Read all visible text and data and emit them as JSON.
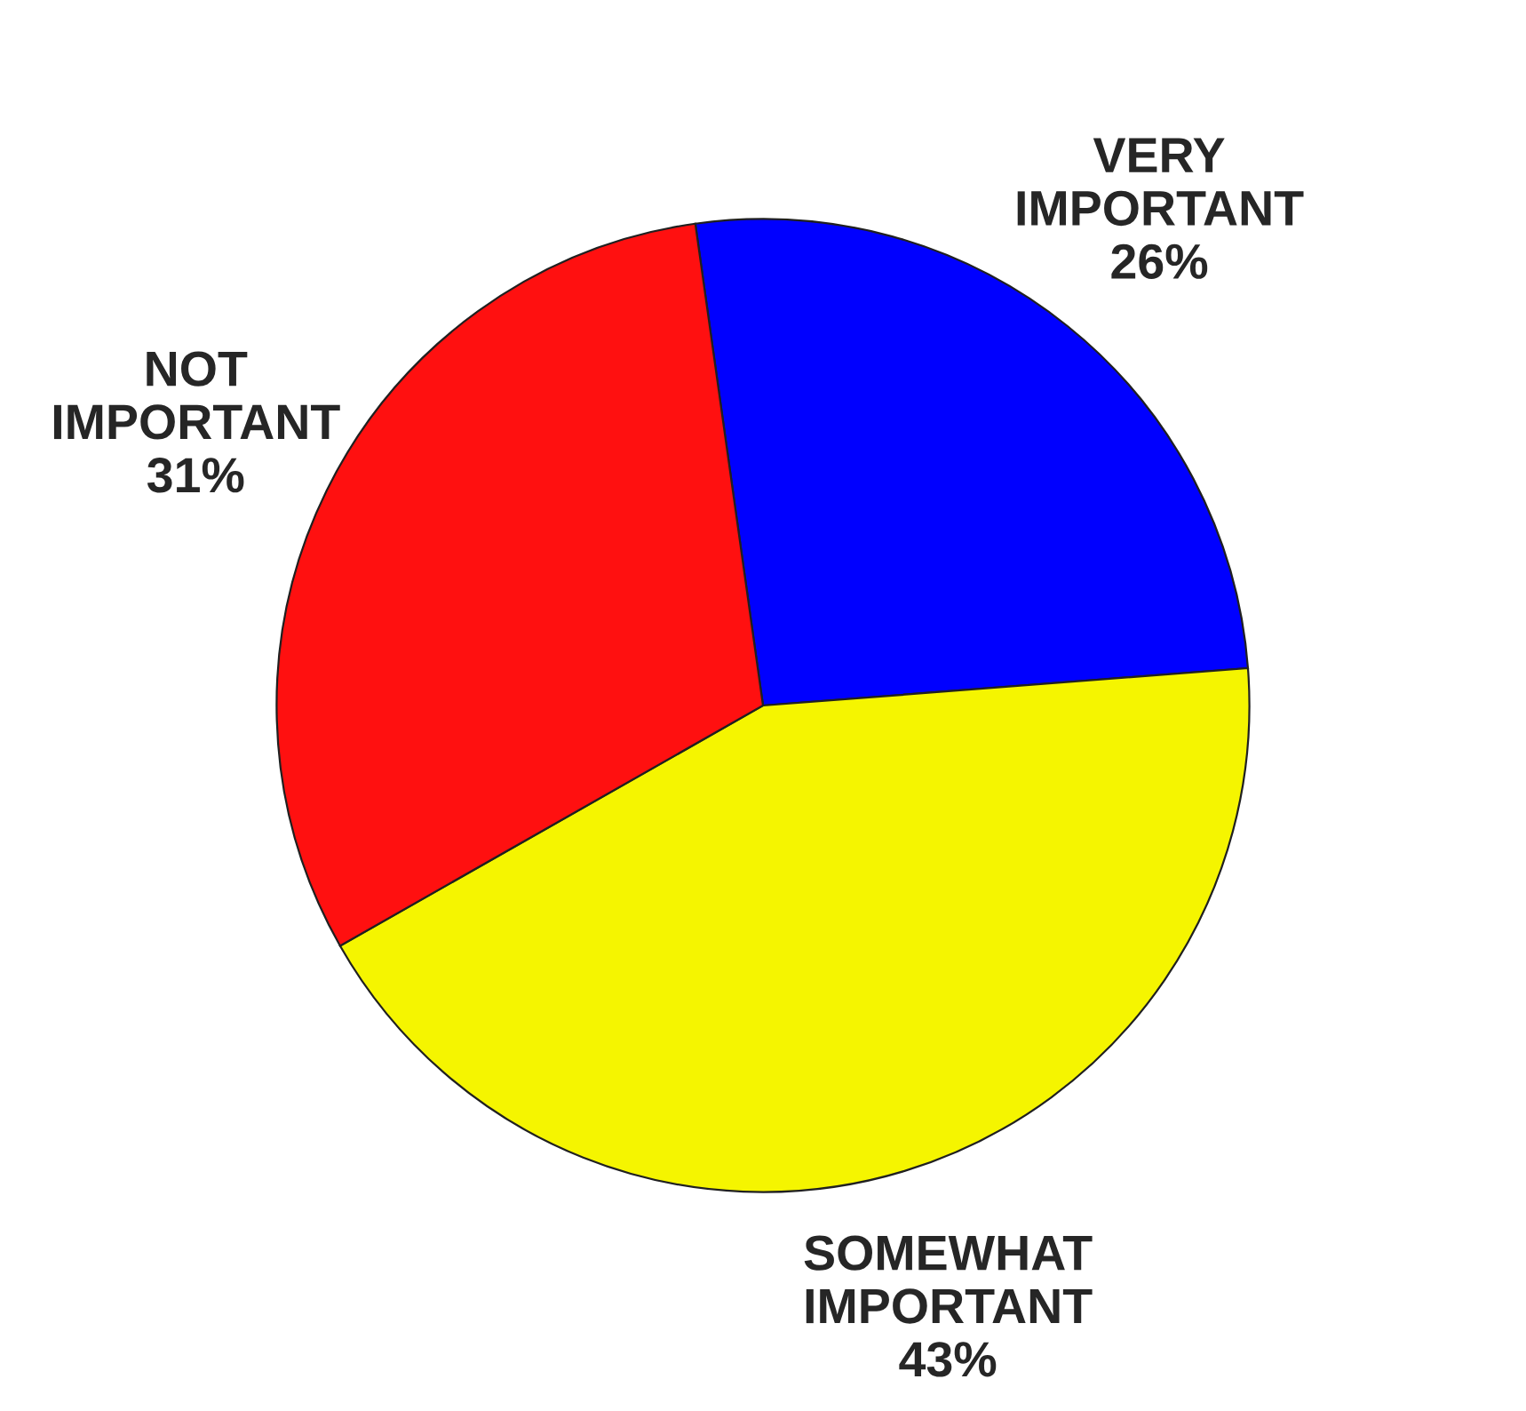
{
  "chart_data": {
    "type": "pie",
    "categories": [
      "VERY IMPORTANT",
      "SOMEWHAT IMPORTANT",
      "NOT IMPORTANT"
    ],
    "values": [
      26,
      43,
      31
    ],
    "value_labels": [
      "26%",
      "43%",
      "31%"
    ],
    "colors": [
      "#0000ff",
      "#f5f500",
      "#ff1010"
    ],
    "legend": false
  }
}
